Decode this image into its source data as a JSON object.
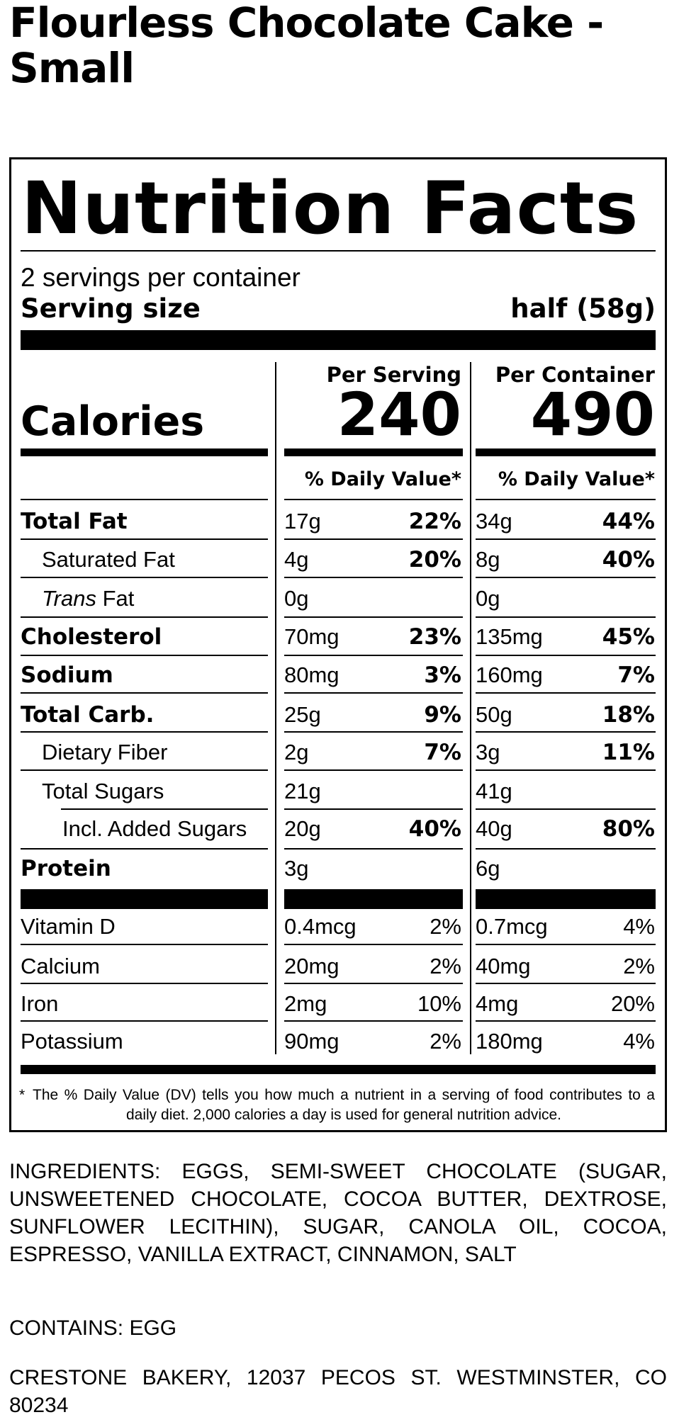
{
  "product": {
    "title": "Flourless Chocolate Cake - Small"
  },
  "label": {
    "title": "Nutrition Facts",
    "servings_per_container": "2 servings per container",
    "serving_size_label": "Serving size",
    "serving_size_value": "half (58g)",
    "per_serving_header": "Per Serving",
    "per_container_header": "Per Container",
    "calories_label": "Calories",
    "calories_per_serving": "240",
    "calories_per_container": "490",
    "daily_value_header": "% Daily Value*",
    "nutrients": [
      {
        "label": "Total Fat",
        "italic_prefix": "",
        "serving_amount": "17g",
        "serving_dv": "22%",
        "container_amount": "34g",
        "container_dv": "44%"
      },
      {
        "label": "Saturated Fat",
        "italic_prefix": "",
        "serving_amount": "4g",
        "serving_dv": "20%",
        "container_amount": "8g",
        "container_dv": "40%"
      },
      {
        "label": "Fat",
        "italic_prefix": "Trans",
        "serving_amount": "0g",
        "serving_dv": "",
        "container_amount": "0g",
        "container_dv": ""
      },
      {
        "label": "Cholesterol",
        "italic_prefix": "",
        "serving_amount": "70mg",
        "serving_dv": "23%",
        "container_amount": "135mg",
        "container_dv": "45%"
      },
      {
        "label": "Sodium",
        "italic_prefix": "",
        "serving_amount": "80mg",
        "serving_dv": "3%",
        "container_amount": "160mg",
        "container_dv": "7%"
      },
      {
        "label": "Total Carb.",
        "italic_prefix": "",
        "serving_amount": "25g",
        "serving_dv": "9%",
        "container_amount": "50g",
        "container_dv": "18%"
      },
      {
        "label": "Dietary Fiber",
        "italic_prefix": "",
        "serving_amount": "2g",
        "serving_dv": "7%",
        "container_amount": "3g",
        "container_dv": "11%"
      },
      {
        "label": "Total Sugars",
        "italic_prefix": "",
        "serving_amount": "21g",
        "serving_dv": "",
        "container_amount": "41g",
        "container_dv": ""
      },
      {
        "label": "Incl. Added Sugars",
        "italic_prefix": "",
        "serving_amount": "20g",
        "serving_dv": "40%",
        "container_amount": "40g",
        "container_dv": "80%"
      },
      {
        "label": "Protein",
        "italic_prefix": "",
        "serving_amount": "3g",
        "serving_dv": "",
        "container_amount": "6g",
        "container_dv": ""
      }
    ],
    "vitamins": [
      {
        "label": "Vitamin D",
        "serving_amount": "0.4mcg",
        "serving_dv": "2%",
        "container_amount": "0.7mcg",
        "container_dv": "4%"
      },
      {
        "label": "Calcium",
        "serving_amount": "20mg",
        "serving_dv": "2%",
        "container_amount": "40mg",
        "container_dv": "2%"
      },
      {
        "label": "Iron",
        "serving_amount": "2mg",
        "serving_dv": "10%",
        "container_amount": "4mg",
        "container_dv": "20%"
      },
      {
        "label": "Potassium",
        "serving_amount": "90mg",
        "serving_dv": "2%",
        "container_amount": "180mg",
        "container_dv": "4%"
      }
    ],
    "footnote_marker": "*",
    "footnote": "The % Daily Value (DV) tells you how much a nutrient in a serving of food contributes to a daily diet. 2,000 calories a day is used for general nutrition advice."
  },
  "ingredients": "INGREDIENTS: EGGS, SEMI-SWEET CHOCOLATE (SUGAR, UNSWEETENED CHOCOLATE, COCOA BUTTER, DEXTROSE, SUNFLOWER LECITHIN), SUGAR, CANOLA OIL, COCOA, ESPRESSO, VANILLA EXTRACT, CINNAMON, SALT",
  "contains": "CONTAINS: EGG",
  "address": "CRESTONE BAKERY, 12037 PECOS ST. WESTMINSTER, CO 80234"
}
